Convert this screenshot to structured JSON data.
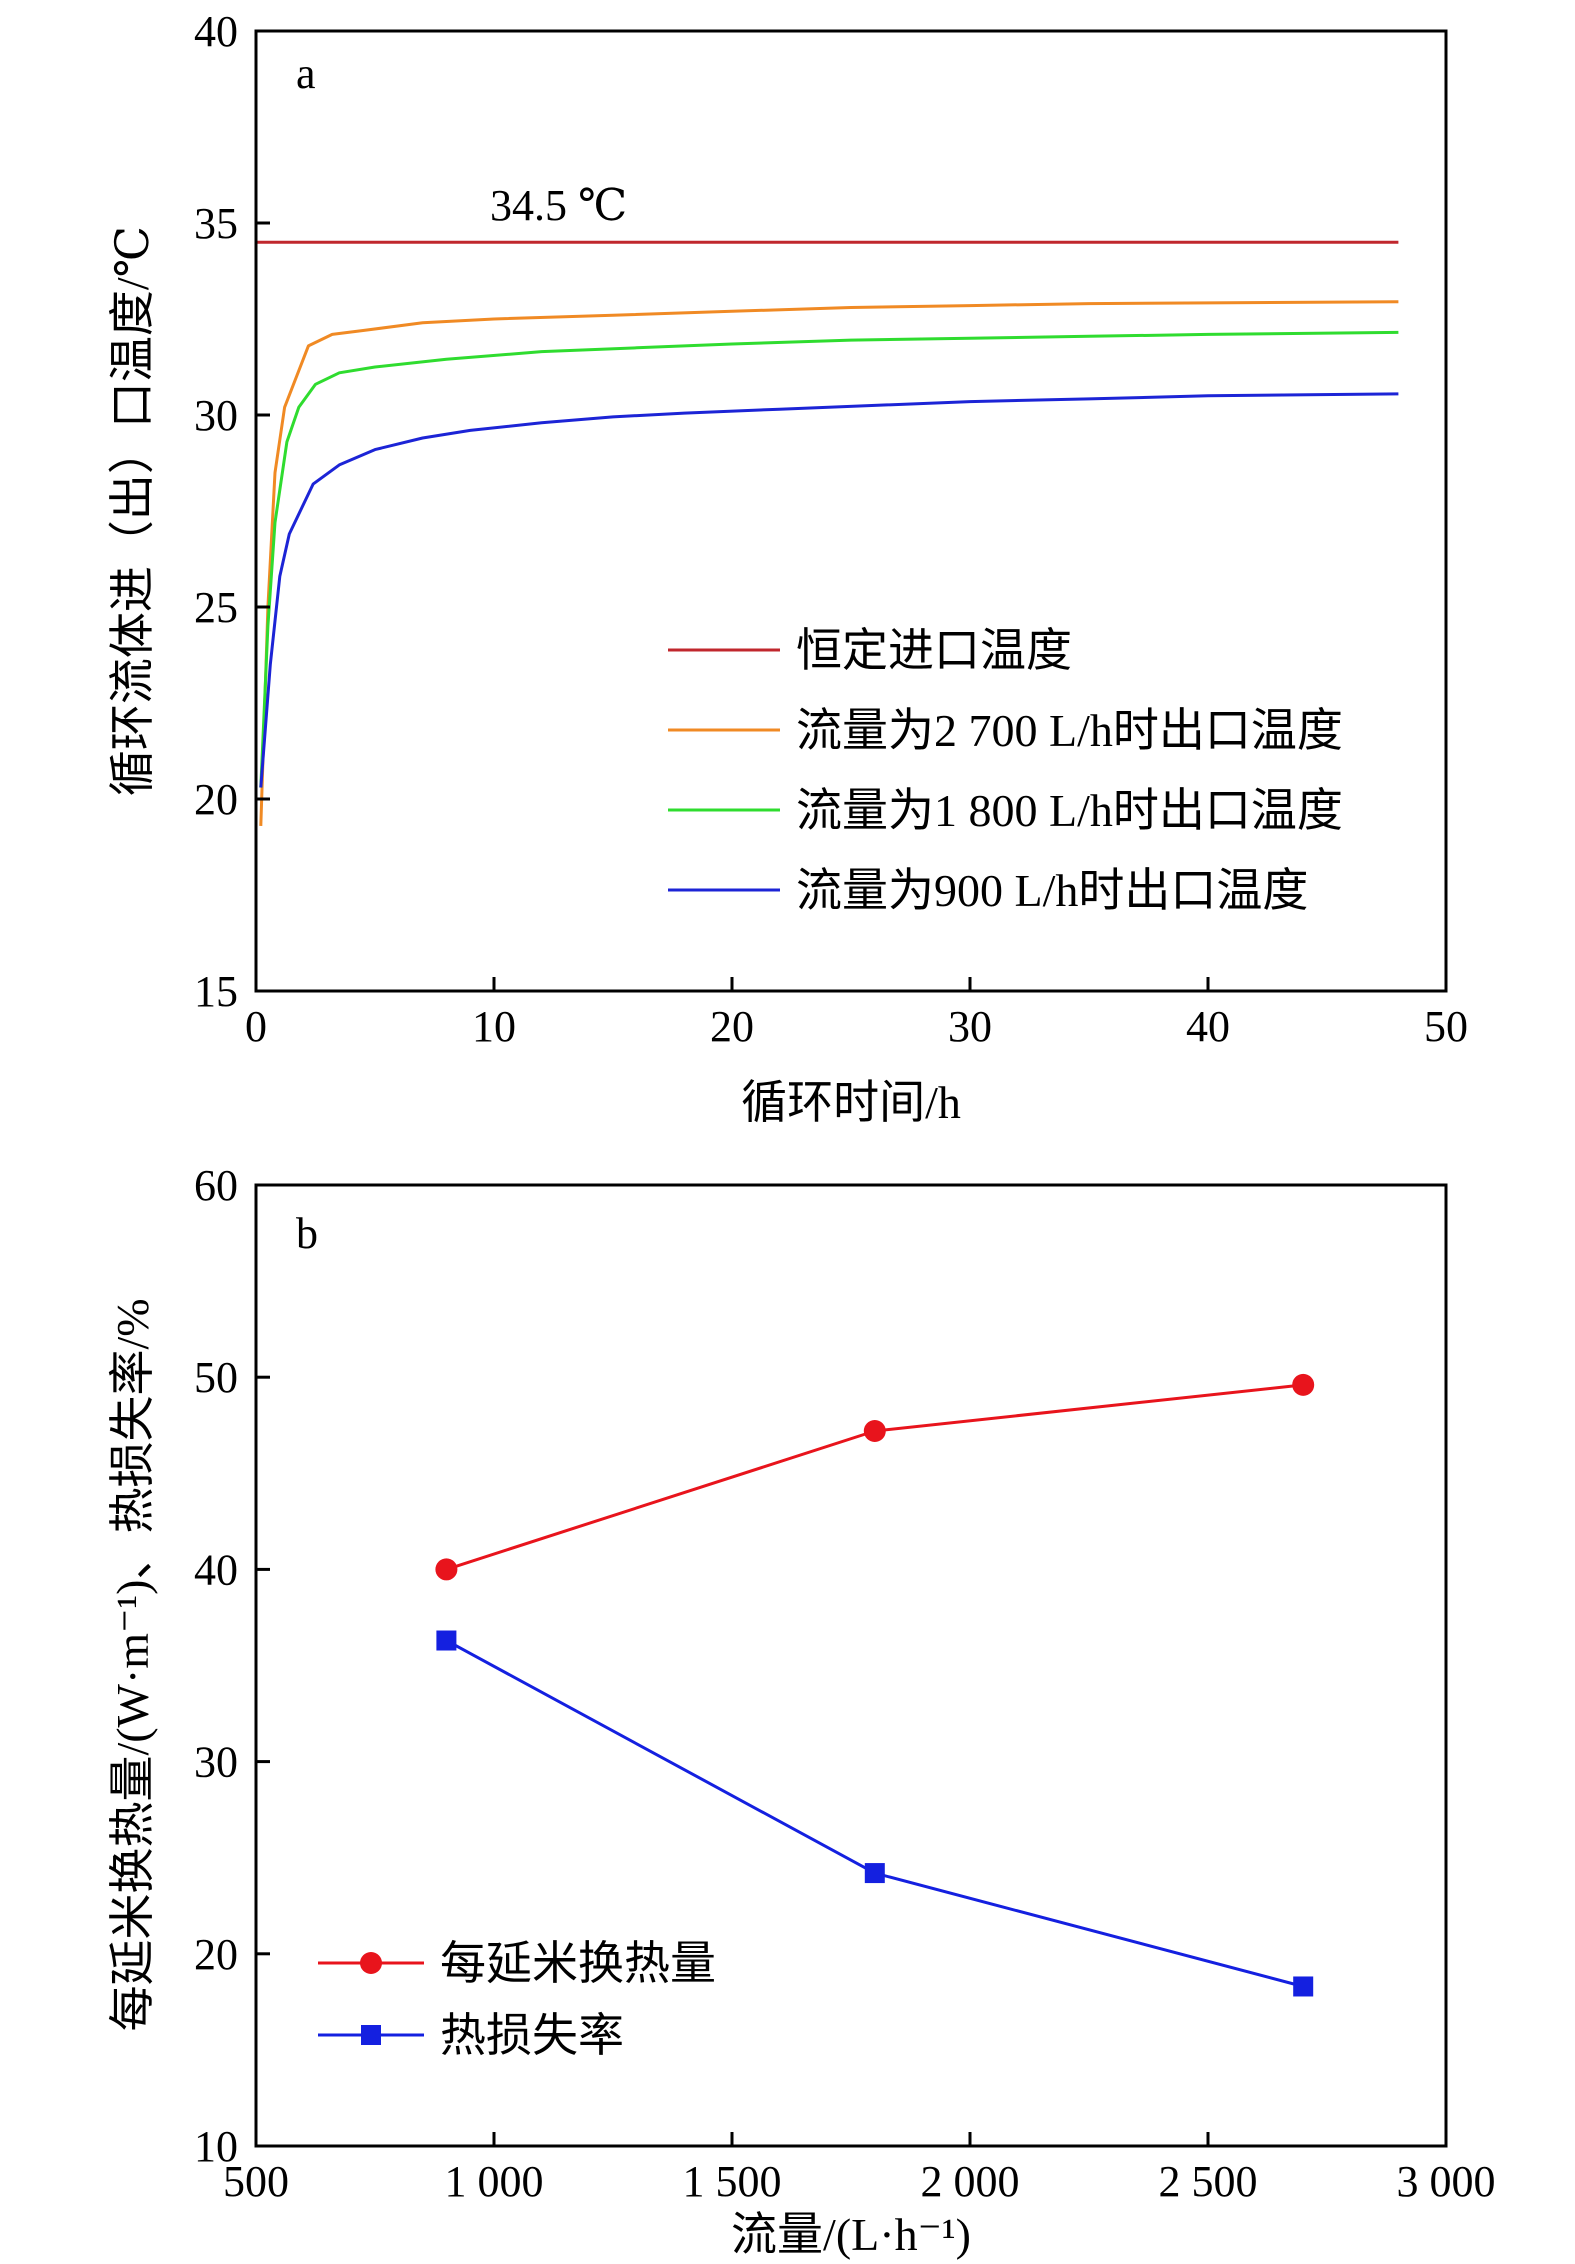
{
  "chart_data": [
    {
      "type": "line",
      "panel_label": "a",
      "xlabel": "循环时间/h",
      "ylabel": "循环流体进（出）口温度/℃",
      "xlim": [
        0,
        50
      ],
      "ylim": [
        15,
        40
      ],
      "xticks": [
        "0",
        "10",
        "20",
        "30",
        "40",
        "50"
      ],
      "yticks": [
        "15",
        "20",
        "25",
        "30",
        "35",
        "40"
      ],
      "annotation": "34.5 ℃",
      "legend_position": "lower-right",
      "series": [
        {
          "name": "恒定进口温度",
          "color": "#c0272d",
          "points": [
            [
              0,
              34.5
            ],
            [
              48,
              34.5
            ]
          ]
        },
        {
          "name": "流量为2 700 L/h时出口温度",
          "color": "#f08a24",
          "points": [
            [
              0.2,
              19.3
            ],
            [
              0.5,
              25
            ],
            [
              0.8,
              28.5
            ],
            [
              1.2,
              30.2
            ],
            [
              2.2,
              31.8
            ],
            [
              3.2,
              32.1
            ],
            [
              4.5,
              32.2
            ],
            [
              7,
              32.4
            ],
            [
              10,
              32.5
            ],
            [
              15,
              32.6
            ],
            [
              20,
              32.7
            ],
            [
              25,
              32.8
            ],
            [
              30,
              32.85
            ],
            [
              35,
              32.9
            ],
            [
              40,
              32.92
            ],
            [
              48,
              32.95
            ]
          ]
        },
        {
          "name": "流量为1 800 L/h时出口温度",
          "color": "#2fdc2f",
          "points": [
            [
              0.2,
              20.3
            ],
            [
              0.5,
              24.5
            ],
            [
              0.8,
              27.2
            ],
            [
              1.3,
              29.3
            ],
            [
              1.8,
              30.2
            ],
            [
              2.5,
              30.8
            ],
            [
              3.5,
              31.1
            ],
            [
              5,
              31.25
            ],
            [
              8,
              31.45
            ],
            [
              12,
              31.65
            ],
            [
              16,
              31.75
            ],
            [
              20,
              31.85
            ],
            [
              25,
              31.95
            ],
            [
              30,
              32.0
            ],
            [
              35,
              32.05
            ],
            [
              40,
              32.1
            ],
            [
              48,
              32.15
            ]
          ]
        },
        {
          "name": "流量为900 L/h时出口温度",
          "color": "#1c24d6",
          "points": [
            [
              0.2,
              20.3
            ],
            [
              0.6,
              23.5
            ],
            [
              1.0,
              25.8
            ],
            [
              1.4,
              26.9
            ],
            [
              2.4,
              28.2
            ],
            [
              3.5,
              28.7
            ],
            [
              5,
              29.1
            ],
            [
              7,
              29.4
            ],
            [
              9,
              29.6
            ],
            [
              12,
              29.8
            ],
            [
              15,
              29.95
            ],
            [
              18,
              30.05
            ],
            [
              22,
              30.15
            ],
            [
              26,
              30.25
            ],
            [
              30,
              30.35
            ],
            [
              35,
              30.42
            ],
            [
              40,
              30.5
            ],
            [
              48,
              30.55
            ]
          ]
        }
      ]
    },
    {
      "type": "line",
      "panel_label": "b",
      "xlabel": "流量/(L·h⁻¹)",
      "ylabel": "每延米换热量/(W·m⁻¹)、热损失率/%",
      "xlim": [
        500,
        3000
      ],
      "ylim": [
        10,
        60
      ],
      "xticks": [
        "500",
        "1 000",
        "1 500",
        "2 000",
        "2 500",
        "3 000"
      ],
      "yticks": [
        "10",
        "20",
        "30",
        "40",
        "50",
        "60"
      ],
      "legend_position": "lower-left",
      "series": [
        {
          "name": "每延米换热量",
          "color": "#e8141c",
          "marker": "circle",
          "x": [
            900,
            1800,
            2700
          ],
          "y": [
            40,
            47.2,
            49.6
          ]
        },
        {
          "name": "热损失率",
          "color": "#1420e0",
          "marker": "square",
          "x": [
            900,
            1800,
            2700
          ],
          "y": [
            36.3,
            24.2,
            18.3
          ]
        }
      ]
    }
  ]
}
